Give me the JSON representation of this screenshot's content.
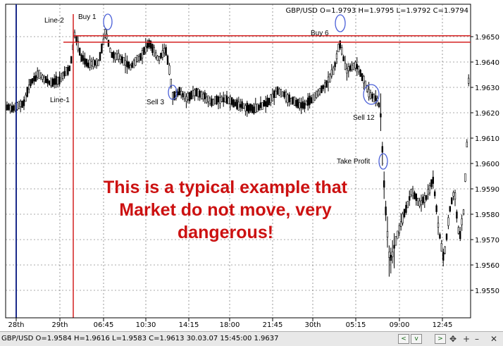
{
  "header": {
    "ohlc": "GBP/USD O=1.9793 H=1.9795 L=1.9792 C=1.9794"
  },
  "y_axis": {
    "ticks": [
      "1.9650",
      "1.9640",
      "1.9630",
      "1.9620",
      "1.9610",
      "1.9600",
      "1.9590",
      "1.9580",
      "1.9570",
      "1.9560",
      "1.9550"
    ]
  },
  "x_axis": {
    "ticks": [
      "28th",
      "29th",
      "06:45",
      "10:30",
      "14:15",
      "18:00",
      "21:45",
      "30th",
      "05:15",
      "09:00",
      "12:45"
    ]
  },
  "annotations": {
    "line1": "Line-1",
    "line2": "Line-2",
    "buy1": "Buy 1",
    "buy6": "Buy 6",
    "sell3": "Sell 3",
    "sell12": "Sell 12",
    "take_profit": "Take Profit"
  },
  "levels": {
    "line1_price": 1.9628,
    "line2_price": 1.96535
  },
  "headline": {
    "line1": "This is a typical example that",
    "line2": "Market do not move, very",
    "line3": "dangerous!"
  },
  "status": {
    "text": "GBP/USD O=1.9584 H=1.9616 L=1.9583 C=1.9613   30.03.07 15:45:00 1.9637",
    "nav_left": "<",
    "nav_right": ">",
    "nav_down": "v",
    "nav_plus": "+",
    "nav_minus": "–",
    "nav_move": "✥",
    "nav_close": "✕"
  },
  "colors": {
    "level_line": "#d42020",
    "marker_circle": "#4a5fd8",
    "headline": "#cc1111",
    "candle": "#000000",
    "left_marker": "#1a2a8a"
  }
}
